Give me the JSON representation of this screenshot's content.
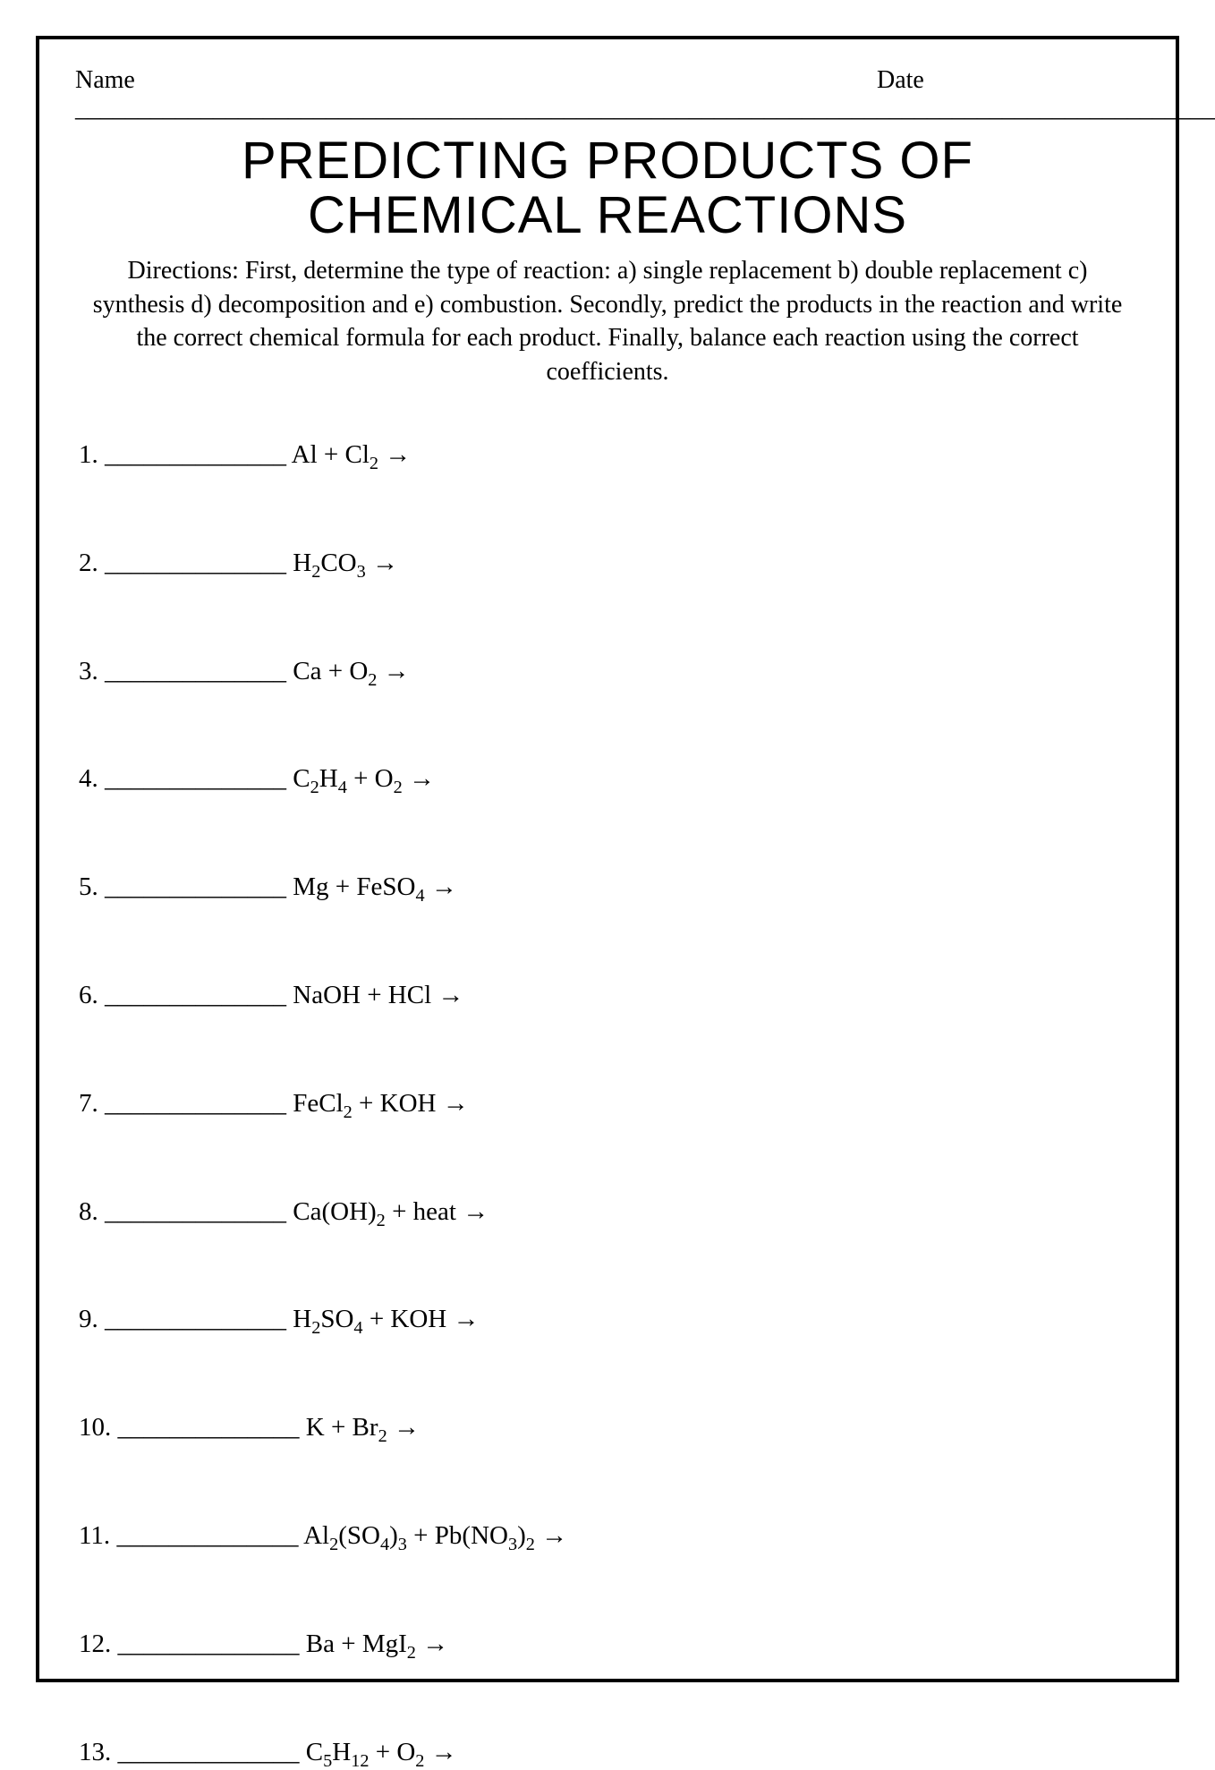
{
  "header": {
    "name_label": "Name ________________________________________________________________",
    "date_label": "Date ________________________________"
  },
  "title_line1": "PREDICTING PRODUCTS OF",
  "title_line2": "CHEMICAL REACTIONS",
  "directions": "Directions: First, determine the type of reaction: a) single replacement b) double replacement c) synthesis d) decomposition and e) combustion. Secondly, predict the products in the reaction and write the correct chemical formula for each product. Finally, balance each reaction using the correct coefficients.",
  "blank": "______________",
  "arrow": " →",
  "problems": [
    {
      "num": "1. ",
      "formula_html": " Al + Cl<sub>2</sub>"
    },
    {
      "num": "2. ",
      "formula_html": " H<sub>2</sub>CO<sub>3</sub>"
    },
    {
      "num": "3. ",
      "formula_html": " Ca + O<sub>2</sub>"
    },
    {
      "num": "4. ",
      "formula_html": " C<sub>2</sub>H<sub>4</sub> + O<sub>2</sub>"
    },
    {
      "num": "5. ",
      "formula_html": " Mg + FeSO<sub>4</sub>"
    },
    {
      "num": "6. ",
      "formula_html": " NaOH + HCl"
    },
    {
      "num": "7. ",
      "formula_html": " FeCl<sub>2</sub> + KOH"
    },
    {
      "num": "8. ",
      "formula_html": " Ca(OH)<sub>2</sub> + heat"
    },
    {
      "num": "9. ",
      "formula_html": " H<sub>2</sub>SO<sub>4</sub> + KOH"
    },
    {
      "num": "10. ",
      "formula_html": " K + Br<sub>2</sub>"
    },
    {
      "num": "11. ",
      "formula_html": " Al<sub>2</sub>(SO<sub>4</sub>)<sub>3</sub> + Pb(NO<sub>3</sub>)<sub>2</sub>"
    },
    {
      "num": "12. ",
      "formula_html": " Ba + MgI<sub>2</sub>"
    },
    {
      "num": "13. ",
      "formula_html": " C<sub>5</sub>H<sub>12</sub> + O<sub>2</sub>"
    }
  ],
  "colors": {
    "text": "#000000",
    "background": "#ffffff",
    "border": "#000000"
  },
  "style": {
    "title_fontsize": 58,
    "body_fontsize": 28,
    "problem_fontsize": 29,
    "border_width": 4,
    "problem_spacing": 86
  }
}
